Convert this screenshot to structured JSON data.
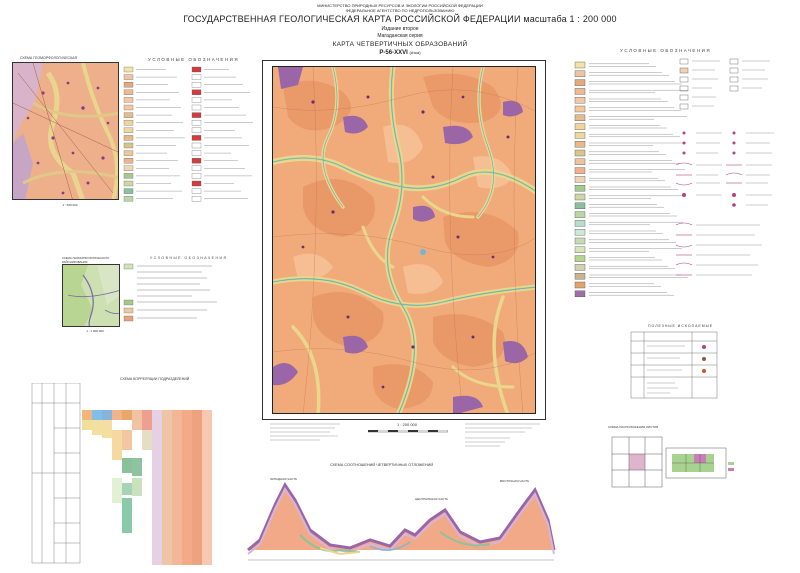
{
  "header": {
    "ministry": "МИНИСТЕРСТВО ПРИРОДНЫХ РЕСУРСОВ И ЭКОЛОГИИ РОССИЙСКОЙ ФЕДЕРАЦИИ",
    "agency": "ФЕДЕРАЛЬНОЕ АГЕНТСТВО ПО НЕДРОПОЛЬЗОВАНИЮ",
    "title": "ГОСУДАРСТВЕННАЯ ГЕОЛОГИЧЕСКАЯ КАРТА РОССИЙСКОЙ ФЕДЕРАЦИИ масштаба 1 : 200 000",
    "edition": "Издание второе",
    "series": "Магаданская серия",
    "map_name": "КАРТА ЧЕТВЕРТИЧНЫХ ОБРАЗОВАНИЙ",
    "sheet": "P-56-XXVI",
    "sheet_note": "(Атка)"
  },
  "left": {
    "inset_title": "СХЕМА ГЕОМОРФОЛОГИЧЕСКАЯ",
    "legend_title": "УСЛОВНЫЕ ОБОЗНАЧЕНИЯ",
    "scale_small": "1 : 500 000",
    "inset2_title": "СХЕМА ГЕОМОРФОЛОГИЧЕСКОГО РАЙОНИРОВАНИЯ",
    "inset2_legend": "УСЛОВНЫЕ ОБОЗНАЧЕНИЯ",
    "inset2_scale": "1 : 1 000 000",
    "correlation_title": "СХЕМА КОРРЕЛЯЦИИ ПОДРАЗДЕЛЕНИЙ"
  },
  "map": {
    "scale_label": "1 : 200 000",
    "profile_title": "СХЕМА СООТНОШЕНИЙ ЧЕТВЕРТИЧНЫХ ОТЛОЖЕНИЙ",
    "profile_labels": [
      "ЗАПАДНАЯ ЧАСТЬ",
      "ЦЕНТРАЛЬНАЯ ЧАСТЬ",
      "ВОСТОЧНАЯ ЧАСТЬ"
    ]
  },
  "right": {
    "legend_title": "УСЛОВНЫЕ ОБОЗНАЧЕНИЯ",
    "sub_legend_title": "ПОЛЕЗНЫЕ ИСКОПАЕМЫЕ",
    "index_title": "СХЕМА РАСПОЛОЖЕНИЯ ЛИСТОВ",
    "swatches": [
      "#f4e2a4",
      "#efc4a0",
      "#e8a87e",
      "#f0b891",
      "#f2c7a5",
      "#f4c79c",
      "#e5ba8e",
      "#f2d39a",
      "#ecd9a0",
      "#e6b98a",
      "#d8c58c",
      "#eec59a",
      "#f0b28a",
      "#f0d4b8",
      "#a7c98e",
      "#c9d9a2",
      "#8bbf9d",
      "#b9d7a2",
      "#b5dfcc",
      "#cfe7d7",
      "#c6dcb3",
      "#d4e6b8",
      "#b6d48a",
      "#d6cfb0",
      "#c9b48f",
      "#e2a36d",
      "#9f6ea5"
    ]
  },
  "colors": {
    "map_base": "#f0a878",
    "map_dark": "#e58d5d",
    "valley": "#eedc8f",
    "river": "#6fb8d2",
    "purple": "#9a66a8",
    "green": "#9cc58b"
  }
}
